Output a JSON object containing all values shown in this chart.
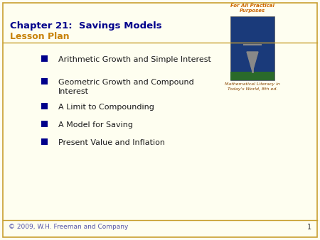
{
  "title_line1": "Chapter 21:  Savings Models",
  "title_line2": "Lesson Plan",
  "title_color": "#00008B",
  "subtitle_color": "#C8820A",
  "bullet_texts": [
    "Arithmetic Growth and Simple Interest",
    "Geometric Growth and Compound\nInterest",
    "A Limit to Compounding",
    "A Model for Saving",
    "Present Value and Inflation"
  ],
  "bullet_color": "#00008B",
  "bullet_text_color": "#1a1a1a",
  "background_color": "#FEFEF0",
  "footer_text": "© 2009, W.H. Freeman and Company",
  "footer_color": "#5555AA",
  "page_number": "1",
  "page_number_color": "#333333",
  "border_color": "#C8A030",
  "top_right_text1": "For All Practical",
  "top_right_text2": "Purposes",
  "top_right_color": "#CC6600",
  "caption_text": "Mathematical Literacy in\nToday's World, 8th ed.",
  "caption_color": "#884400"
}
